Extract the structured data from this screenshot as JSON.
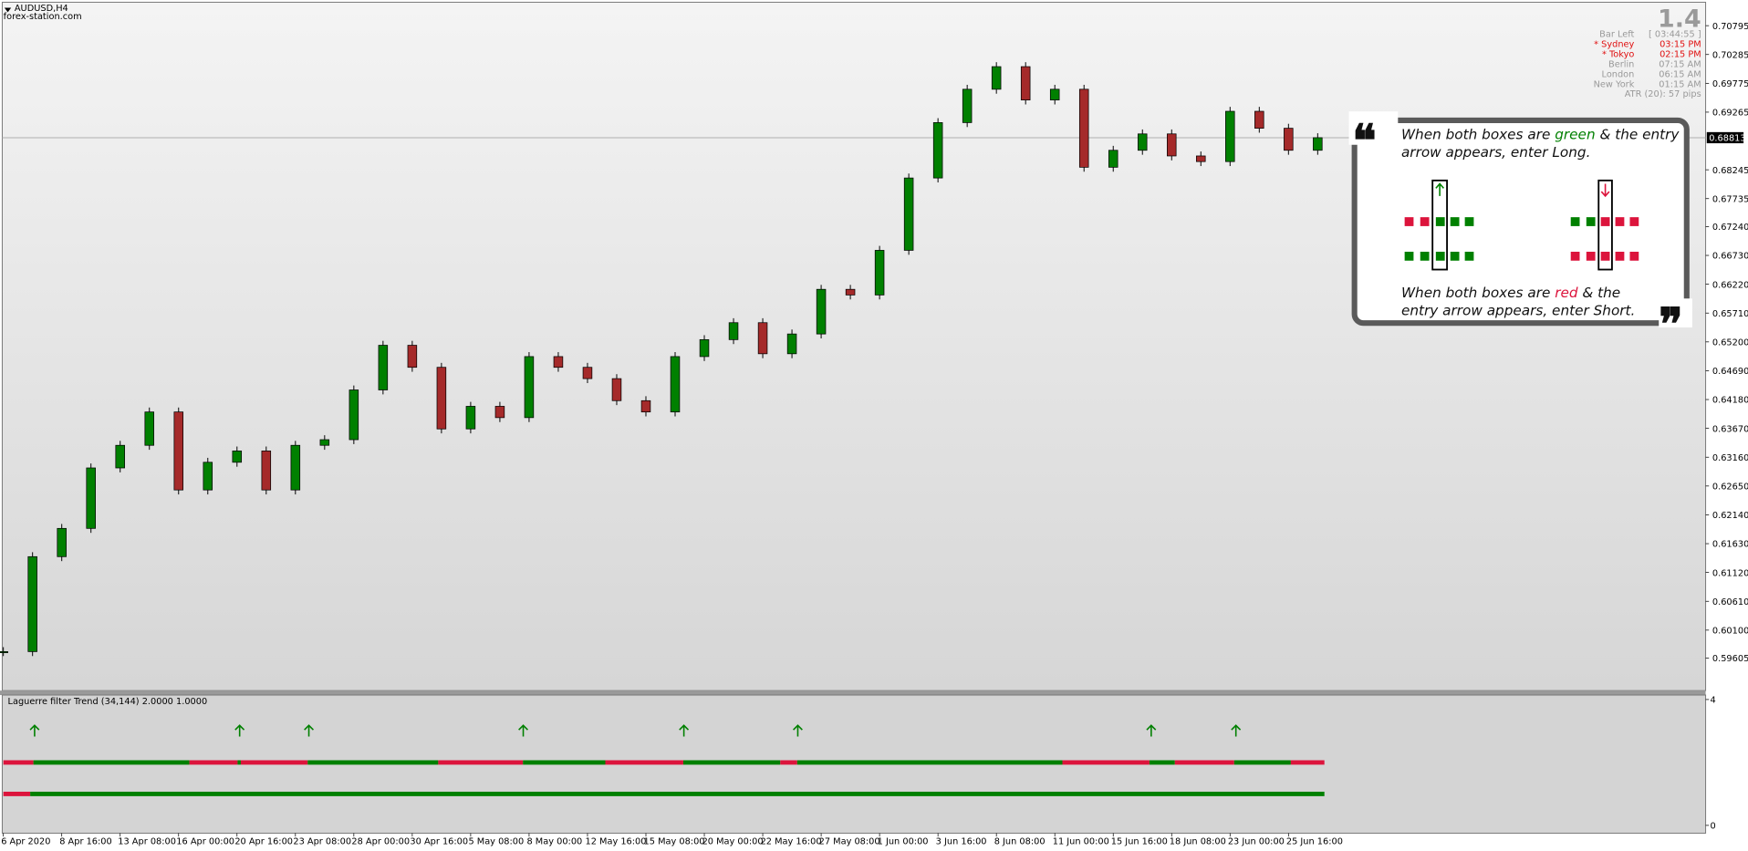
{
  "header": {
    "symbol": "AUDUSD,H4",
    "site": "forex-station.com"
  },
  "info_panel": {
    "version": "1.4",
    "rows": [
      {
        "name": "Bar Left",
        "time": "[ 03:44:55 ]",
        "color": "#999999"
      },
      {
        "name": "* Sydney",
        "time": "03:15 PM",
        "color": "#e01010"
      },
      {
        "name": "* Tokyo",
        "time": "02:15 PM",
        "color": "#e01010"
      },
      {
        "name": "Berlin",
        "time": "07:15 AM",
        "color": "#999999"
      },
      {
        "name": "London",
        "time": "06:15 AM",
        "color": "#999999"
      },
      {
        "name": "New York",
        "time": "01:15 AM",
        "color": "#999999"
      }
    ],
    "atr": "ATR (20): 57 pips"
  },
  "annotation": {
    "long": [
      [
        "When both boxes are ",
        "green",
        " & the entry"
      ],
      [
        "arrow appears, enter Long."
      ]
    ],
    "short": [
      [
        "When both boxes are ",
        "red",
        " & the"
      ],
      [
        "entry arrow appears, enter Short."
      ]
    ]
  },
  "chart_data": [
    {
      "type": "candlestick",
      "categories": [
        "6 Apr 2020",
        null,
        "8 Apr 16:00",
        null,
        "13 Apr 08:00",
        null,
        "16 Apr 00:00",
        null,
        "20 Apr 16:00",
        null,
        "23 Apr 08:00",
        null,
        "28 Apr 00:00",
        null,
        "30 Apr 16:00",
        null,
        "5 May 08:00",
        null,
        "8 May 00:00",
        null,
        "12 May 16:00",
        null,
        "15 May 08:00",
        null,
        "20 May 00:00",
        null,
        "22 May 16:00",
        null,
        "27 May 08:00",
        null,
        "1 Jun 00:00",
        null,
        "3 Jun 16:00",
        null,
        "8 Jun 08:00",
        null,
        "11 Jun 00:00",
        null,
        "15 Jun 16:00",
        null,
        "18 Jun 08:00",
        null,
        "23 Jun 00:00",
        null,
        "25 Jun 16:00",
        null
      ],
      "values": [
        0.5972,
        0.614,
        0.619,
        0.6297,
        0.6337,
        0.6396,
        0.6258,
        0.6307,
        0.6327,
        0.6258,
        0.6337,
        0.6347,
        0.6435,
        0.6514,
        0.6475,
        0.6366,
        0.6406,
        0.6386,
        0.6494,
        0.6475,
        0.6455,
        0.6416,
        0.6396,
        0.6494,
        0.6524,
        0.6554,
        0.6499,
        0.6534,
        0.6613,
        0.6603,
        0.6682,
        0.681,
        0.6908,
        0.6967,
        0.7007,
        0.6948,
        0.6967,
        0.6829,
        0.6859,
        0.6888,
        0.6849,
        0.6839,
        0.6928,
        0.6898,
        0.6859,
        0.68813
      ],
      "up_color": "#008000",
      "down_color": "#a52a2a",
      "ylim": [
        0.5903,
        0.7119
      ],
      "yticks": [
        0.70795,
        0.70285,
        0.69775,
        0.69265,
        0.68245,
        0.67735,
        {
          "value": 0.6724,
          "label": "0.67240"
        },
        {
          "value": 0.6673,
          "label": "0.66730"
        },
        {
          "value": 0.6622,
          "label": "0.66220"
        },
        {
          "value": 0.6571,
          "label": "0.65710"
        },
        {
          "value": 0.652,
          "label": "0.65200"
        },
        {
          "value": 0.6469,
          "label": "0.64690"
        },
        {
          "value": 0.6418,
          "label": "0.64180"
        },
        {
          "value": 0.6367,
          "label": "0.63670"
        },
        {
          "value": 0.6316,
          "label": "0.63160"
        },
        {
          "value": 0.6265,
          "label": "0.62650"
        },
        {
          "value": 0.6214,
          "label": "0.62140"
        },
        {
          "value": 0.6163,
          "label": "0.61630"
        },
        {
          "value": 0.6112,
          "label": "0.61120"
        },
        {
          "value": 0.6061,
          "label": "0.60610"
        },
        {
          "value": 0.601,
          "label": "0.60100"
        },
        0.59605
      ],
      "current_price": 0.68813
    },
    {
      "type": "indicator",
      "title": "Laguerre filter Trend (34,144) 2.0000 1.0000",
      "ylim": [
        0,
        4
      ],
      "yticks": [
        4,
        0
      ],
      "arrows": {
        "x": [
          1.07,
          8.09,
          10.46,
          17.8,
          23.3,
          27.2,
          39.3,
          42.2
        ],
        "values": [
          3,
          3,
          3,
          3,
          3,
          3,
          3,
          3
        ],
        "color": "#008000"
      },
      "lines": [
        {
          "level": 2,
          "segments": [
            {
              "from": 0,
              "to": 1.03,
              "color": "#dc143c"
            },
            {
              "from": 1.03,
              "to": 6.37,
              "color": "#008000"
            },
            {
              "from": 6.37,
              "to": 8.02,
              "color": "#dc143c"
            },
            {
              "from": 8.02,
              "to": 8.13,
              "color": "#008000"
            },
            {
              "from": 8.13,
              "to": 10.42,
              "color": "#dc143c"
            },
            {
              "from": 10.42,
              "to": 14.89,
              "color": "#008000"
            },
            {
              "from": 14.89,
              "to": 17.79,
              "color": "#dc143c"
            },
            {
              "from": 17.79,
              "to": 20.61,
              "color": "#008000"
            },
            {
              "from": 20.61,
              "to": 23.28,
              "color": "#dc143c"
            },
            {
              "from": 23.28,
              "to": 26.6,
              "color": "#008000"
            },
            {
              "from": 26.6,
              "to": 27.18,
              "color": "#dc143c"
            },
            {
              "from": 27.18,
              "to": 36.26,
              "color": "#008000"
            },
            {
              "from": 36.26,
              "to": 39.24,
              "color": "#dc143c"
            },
            {
              "from": 39.24,
              "to": 40.11,
              "color": "#008000"
            },
            {
              "from": 40.11,
              "to": 42.14,
              "color": "#dc143c"
            },
            {
              "from": 42.14,
              "to": 44.08,
              "color": "#008000"
            },
            {
              "from": 44.08,
              "to": 45.23,
              "color": "#dc143c"
            }
          ]
        },
        {
          "level": 1,
          "segments": [
            {
              "from": 0,
              "to": 0.92,
              "color": "#dc143c"
            },
            {
              "from": 0.92,
              "to": 45.23,
              "color": "#008000"
            }
          ]
        }
      ]
    }
  ]
}
